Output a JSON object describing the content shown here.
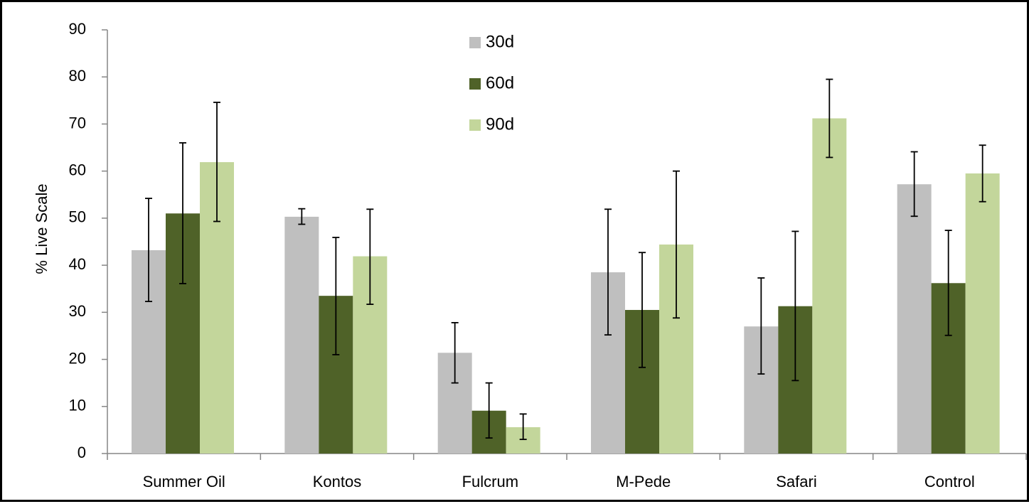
{
  "chart_data": {
    "type": "bar",
    "title": "",
    "xlabel": "",
    "ylabel": "% Live Scale",
    "ylim": [
      0,
      90
    ],
    "yticks": [
      0,
      10,
      20,
      30,
      40,
      50,
      60,
      70,
      80,
      90
    ],
    "grid": false,
    "legend_position": "top-center",
    "categories": [
      "Summer Oil",
      "Kontos",
      "Fulcrum",
      "M-Pede",
      "Safari",
      "Control"
    ],
    "series": [
      {
        "name": "30d",
        "color": "#bfbfbf",
        "values": [
          43.2,
          50.3,
          21.4,
          38.5,
          27.0,
          57.2
        ],
        "error_low": [
          32.3,
          48.7,
          15.0,
          25.2,
          16.9,
          50.4
        ],
        "error_high": [
          54.2,
          52.0,
          27.8,
          51.9,
          37.3,
          64.1
        ]
      },
      {
        "name": "60d",
        "color": "#4f6228",
        "values": [
          51.0,
          33.5,
          9.1,
          30.5,
          31.3,
          36.2
        ],
        "error_low": [
          36.1,
          21.0,
          3.3,
          18.3,
          15.5,
          25.1
        ],
        "error_high": [
          66.0,
          45.9,
          15.0,
          42.7,
          47.2,
          47.4
        ]
      },
      {
        "name": "90d",
        "color": "#c3d69b",
        "values": [
          61.9,
          41.9,
          5.6,
          44.4,
          71.2,
          59.5
        ],
        "error_low": [
          49.3,
          31.7,
          3.0,
          28.8,
          62.9,
          53.5
        ],
        "error_high": [
          74.6,
          51.9,
          8.4,
          60.0,
          79.5,
          65.5
        ]
      }
    ]
  }
}
